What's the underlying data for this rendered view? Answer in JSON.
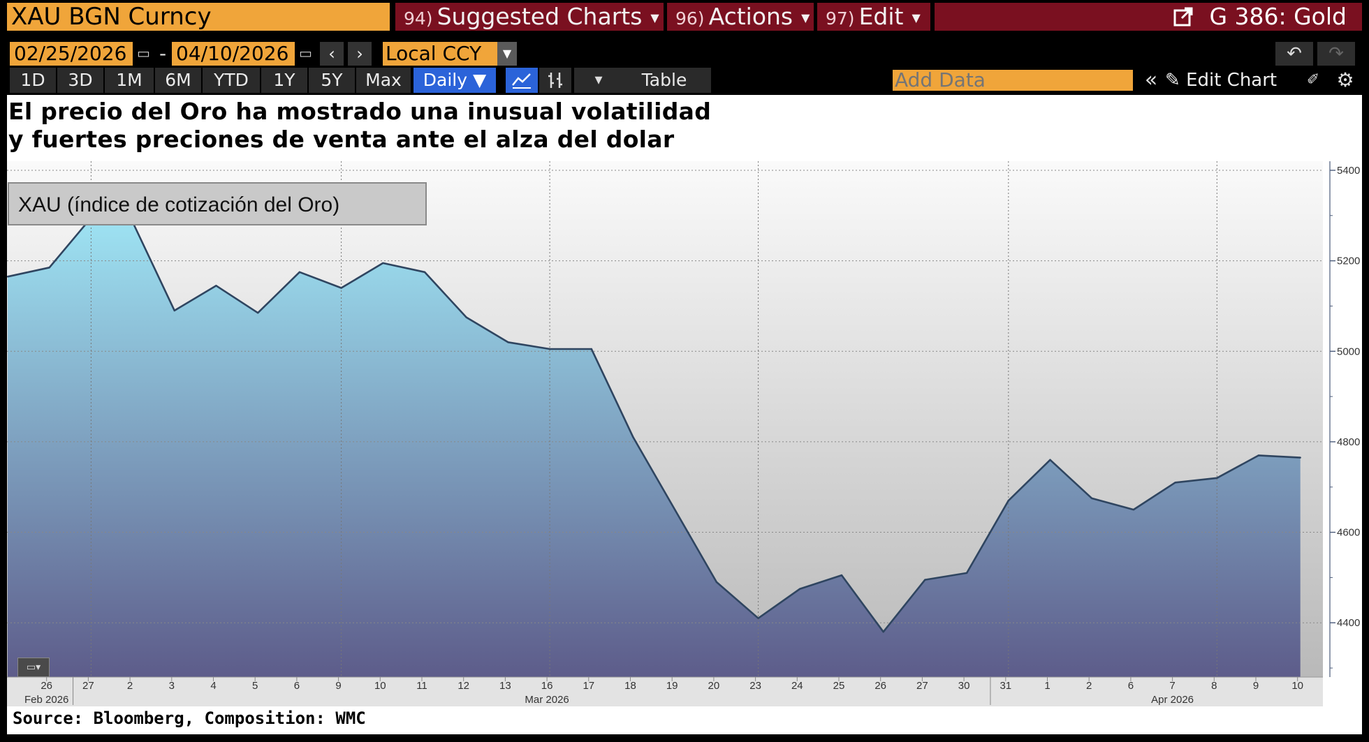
{
  "toolbar": {
    "ticker": "XAU BGN Curncy",
    "menu": [
      {
        "num": "94)",
        "label": "Suggested Charts"
      },
      {
        "num": "96)",
        "label": "Actions"
      },
      {
        "num": "97)",
        "label": "Edit"
      }
    ],
    "title": "G 386: Gold"
  },
  "range": {
    "start_date": "02/25/2026",
    "separator": "-",
    "end_date": "04/10/2026",
    "currency": "Local CCY"
  },
  "timeframes": [
    "1D",
    "3D",
    "1M",
    "6M",
    "YTD",
    "1Y",
    "5Y",
    "Max"
  ],
  "frequency": "Daily",
  "table_label": "Table",
  "add_data_placeholder": "Add Data",
  "edit_chart_label": "Edit Chart",
  "icons": {
    "calendar": "calendar-icon",
    "prev": "chevron-left-icon",
    "next": "chevron-right-icon",
    "dropdown": "dropdown-caret-icon",
    "undo": "undo-icon",
    "redo": "redo-icon",
    "line_chart": "line-chart-icon",
    "bar_chart": "ohlc-bar-icon",
    "collapse": "double-chevron-left-icon",
    "pencil": "pencil-icon",
    "annotate": "annotate-icon",
    "settings": "gear-icon",
    "external": "external-link-icon"
  },
  "colors": {
    "orange": "#f0a53a",
    "maroon": "#7a1020",
    "blue_active": "#2b63d9",
    "area_top": "#9ee3f3",
    "area_bottom": "#5d5c8a",
    "line": "#2f4560"
  },
  "chart_data": {
    "type": "area",
    "title": "El precio del Oro ha mostrado una inusual volatilidad y fuertes preciones de venta ante el alza del dolar",
    "title_lines": [
      "El precio del Oro ha mostrado una inusual volatilidad",
      "y fuertes preciones de venta ante el alza del dolar"
    ],
    "series": [
      {
        "name": "XAU (índice de cotización del Oro)",
        "x": [
          "2026-02-25",
          "2026-02-26",
          "2026-02-27",
          "2026-03-02",
          "2026-03-03",
          "2026-03-04",
          "2026-03-05",
          "2026-03-06",
          "2026-03-09",
          "2026-03-10",
          "2026-03-11",
          "2026-03-12",
          "2026-03-13",
          "2026-03-16",
          "2026-03-17",
          "2026-03-18",
          "2026-03-19",
          "2026-03-20",
          "2026-03-23",
          "2026-03-24",
          "2026-03-25",
          "2026-03-26",
          "2026-03-27",
          "2026-03-30",
          "2026-03-31",
          "2026-04-01",
          "2026-04-02",
          "2026-04-06",
          "2026-04-07",
          "2026-04-08",
          "2026-04-09",
          "2026-04-10"
        ],
        "values": [
          5165,
          5185,
          5295,
          5285,
          5090,
          5145,
          5085,
          5175,
          5140,
          5195,
          5175,
          5075,
          5020,
          5005,
          5005,
          4810,
          4650,
          4490,
          4410,
          4475,
          4505,
          4380,
          4495,
          4510,
          4670,
          4760,
          4675,
          4650,
          4710,
          4720,
          4770,
          4765
        ]
      }
    ],
    "x_tick_labels": [
      "26",
      "27",
      "2",
      "3",
      "4",
      "5",
      "6",
      "9",
      "10",
      "11",
      "12",
      "13",
      "16",
      "17",
      "18",
      "19",
      "20",
      "23",
      "24",
      "25",
      "26",
      "27",
      "30",
      "31",
      "1",
      "2",
      "6",
      "7",
      "8",
      "9",
      "10"
    ],
    "month_labels": [
      {
        "label": "Feb 2026",
        "at_index": 1
      },
      {
        "label": "Mar 2026",
        "at_index": 13
      },
      {
        "label": "Apr 2026",
        "at_index": 28
      }
    ],
    "y_ticks": [
      4400,
      4600,
      4800,
      5000,
      5200,
      5400
    ],
    "ylim": [
      4280,
      5420
    ],
    "y_axis_side": "right",
    "grid": true,
    "legend": "top-left"
  },
  "source": "Source: Bloomberg, Composition: WMC"
}
